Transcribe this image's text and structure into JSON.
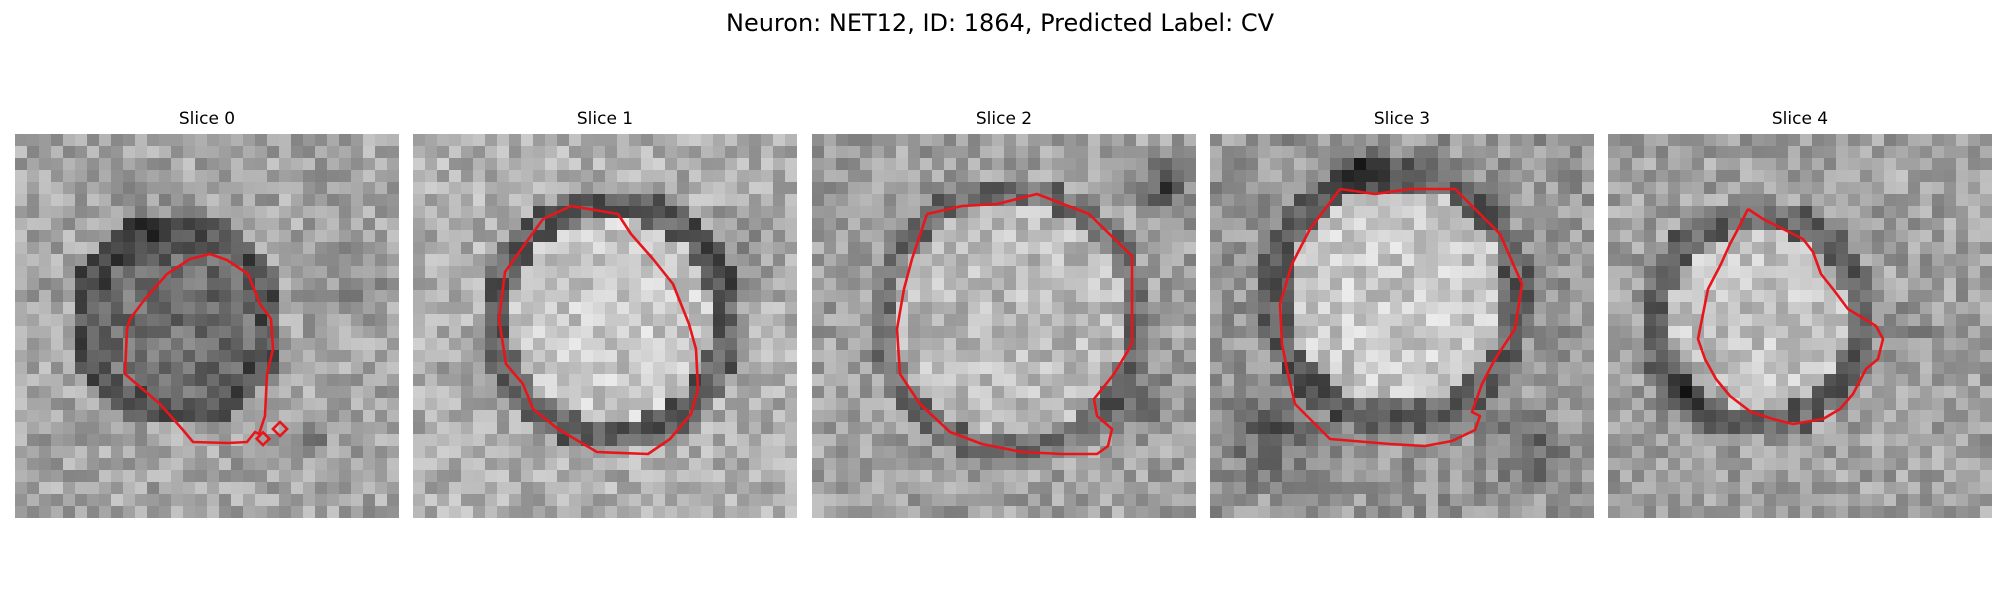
{
  "figure": {
    "title": "Neuron: NET12, ID: 1864, Predicted Label: CV",
    "contour_color": "#e8151b"
  },
  "panels": [
    {
      "title": "Slice 0"
    },
    {
      "title": "Slice 1"
    },
    {
      "title": "Slice 2"
    },
    {
      "title": "Slice 3"
    },
    {
      "title": "Slice 4"
    }
  ]
}
